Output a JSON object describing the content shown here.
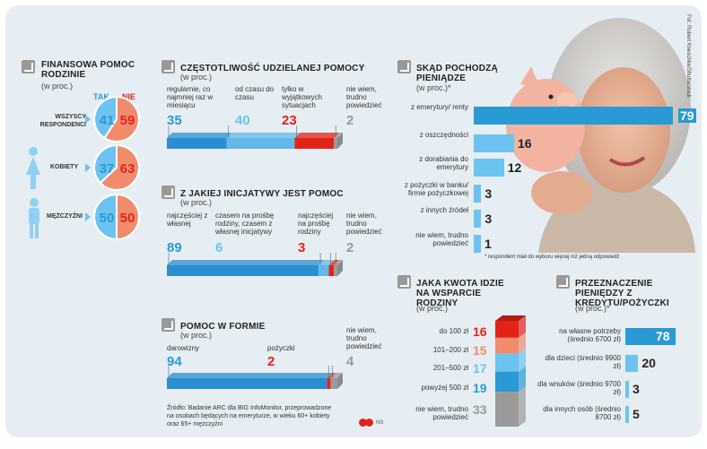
{
  "credit": "Fot. Robert Kneschke/Shutterstock",
  "respondent_note": "* respondent miał do wyboru więcej niż jedną odpowiedź",
  "source": [
    "Źródło: Badanie ARC dla BIG InfoMonitor, przeprowadzone",
    "na osobach będących na emeryturze, w wieku 60+ kobiety",
    "oraz 65+ mężczyźni"
  ],
  "logo": "NS",
  "colors": {
    "blue": "#2a9ad6",
    "light_blue": "#6cc3ef",
    "red": "#e2231a",
    "grey": "#9a9a9a",
    "salmon": "#f08c6c"
  },
  "chart_data": [
    {
      "type": "pie",
      "title": "FINANSOWA POMOC RODZINIE",
      "subtitle": "(w proc.)",
      "legend": [
        "TAK",
        "NIE"
      ],
      "groups": [
        {
          "label": "WSZYSCY RESPONDENCI",
          "values": [
            41,
            59
          ]
        },
        {
          "label": "KOBIETY",
          "values": [
            37,
            63
          ]
        },
        {
          "label": "MĘŻCZYŹNI",
          "values": [
            50,
            50
          ]
        }
      ]
    },
    {
      "type": "bar",
      "title": "CZĘSTOTLIWOŚĆ UDZIELANEJ POMOCY",
      "subtitle": "(w proc.)",
      "categories": [
        "regularnie, co najmniej raz w miesiącu",
        "od czasu do czasu",
        "tylko w wyjątkowych sytuacjach",
        "nie wiem, trudno powiedzieć"
      ],
      "values": [
        35,
        40,
        23,
        2
      ]
    },
    {
      "type": "bar",
      "title": "Z JAKIEJ INICJATYWY JEST POMOC",
      "subtitle": "(w proc.)",
      "categories": [
        "najczęściej z własnej",
        "czasem na prośbę rodziny, czasem z własnej inicjatywy",
        "najczęściej na prośbę rodziny",
        "nie wiem, trudno powiedzieć"
      ],
      "values": [
        89,
        6,
        3,
        2
      ]
    },
    {
      "type": "bar",
      "title": "POMOC W FORMIE",
      "subtitle": "(w proc.)",
      "categories": [
        "darowizny",
        "pożyczki",
        "nie wiem, trudno powiedzieć"
      ],
      "values": [
        94,
        2,
        4
      ]
    },
    {
      "type": "bar",
      "title": "SKĄD POCHODZĄ PIENIĄDZE",
      "subtitle": "(w proc.)*",
      "categories": [
        "z emerytury/ renty",
        "z oszczędności",
        "z dorabiania do emerytury",
        "z pożyczki w banku/ firmie pożyczkowej",
        "z innych źródeł",
        "nie wiem, trudno powiedzieć"
      ],
      "values": [
        79,
        16,
        12,
        3,
        3,
        1
      ]
    },
    {
      "type": "bar",
      "title": "JAKA KWOTA IDZIE NA WSPARCIE RODZINY",
      "subtitle": "(w proc.)",
      "categories": [
        "do 100 zł",
        "101–200 zł",
        "201–500 zł",
        "powyżej 500 zł",
        "nie wiem, trudno powiedzieć"
      ],
      "values": [
        16,
        15,
        17,
        19,
        33
      ]
    },
    {
      "type": "bar",
      "title": "PRZEZNACZENIE PIENIĘDZY Z KREDYTU/POŻYCZKI",
      "subtitle": "(w proc.)*",
      "categories": [
        "na własne potrzeby (średnio 6700 zł)",
        "dla dzieci (średnio 9900 zł)",
        "dla wnuków (średnio 9700 zł)",
        "dla innych osób (średnio 8700 zł)"
      ],
      "values": [
        78,
        20,
        3,
        5
      ]
    }
  ]
}
